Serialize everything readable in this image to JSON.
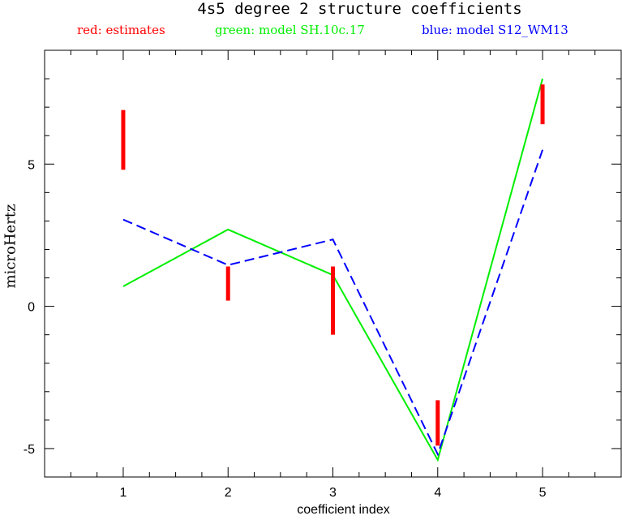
{
  "chart_data": {
    "type": "line",
    "title": "4s5 degree 2 structure coefficients",
    "xlabel": "coefficient index",
    "ylabel": "microHertz",
    "xlim": [
      0.25,
      5.75
    ],
    "ylim": [
      -6.0,
      9.0
    ],
    "x_ticks": [
      1,
      2,
      3,
      4,
      5
    ],
    "y_ticks": [
      -5,
      0,
      5
    ],
    "legend_placement": "top",
    "grid": false,
    "legend": [
      {
        "label": "red: estimates",
        "color": "#ff0000"
      },
      {
        "label": "green: model SH.10c.17",
        "color": "#00ee00"
      },
      {
        "label": "blue: model S12_WM13",
        "color": "#0000ff"
      }
    ],
    "estimates": {
      "name": "red: estimates",
      "color": "#ff0000",
      "x": [
        1,
        2,
        3,
        4,
        5
      ],
      "low": [
        4.8,
        0.2,
        -1.0,
        -4.9,
        6.4
      ],
      "high": [
        6.9,
        1.4,
        1.4,
        -3.3,
        7.8
      ]
    },
    "series": [
      {
        "name": "green: model SH.10c.17",
        "color": "#00ee00",
        "dash": "solid",
        "x": [
          1,
          2,
          3,
          4,
          5
        ],
        "values": [
          0.7,
          2.7,
          1.1,
          -5.4,
          8.0
        ]
      },
      {
        "name": "blue: model S12_WM13",
        "color": "#0000ff",
        "dash": "dashed",
        "x": [
          1,
          2,
          3,
          4,
          5
        ],
        "values": [
          3.05,
          1.45,
          2.35,
          -5.2,
          5.5
        ]
      }
    ]
  }
}
